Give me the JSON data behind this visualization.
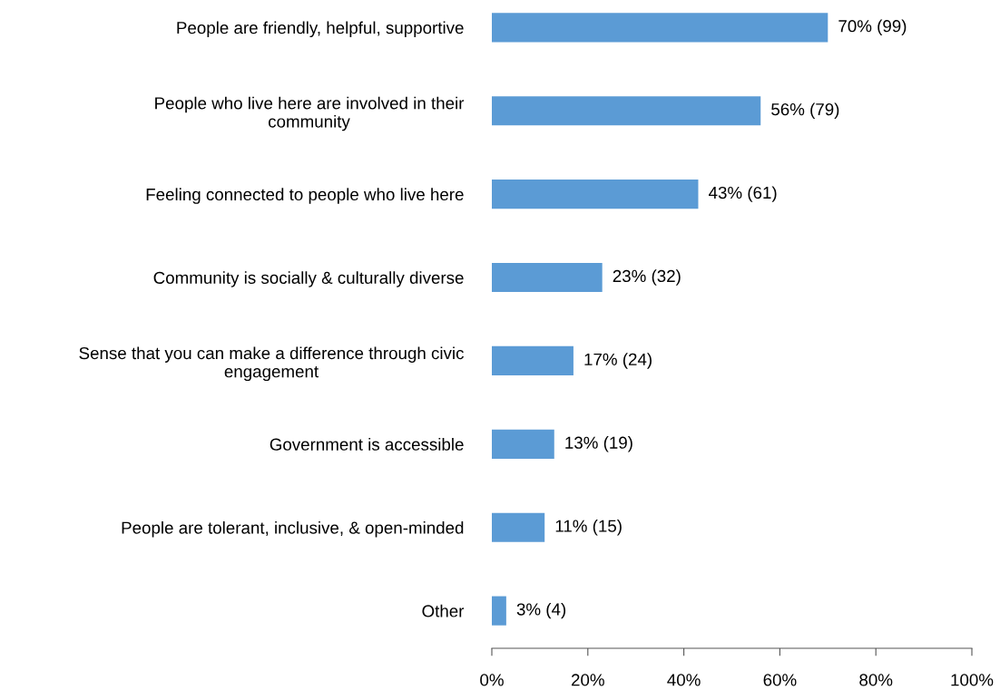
{
  "chart_data": {
    "type": "bar",
    "orientation": "horizontal",
    "categories": [
      "People are friendly, helpful, supportive",
      "People who live here are involved in their\ncommunity",
      "Feeling connected to people who live here",
      "Community is socially & culturally diverse",
      "Sense that you can make a difference through civic\nengagement",
      "Government is accessible",
      "People are tolerant, inclusive, & open-minded",
      "Other"
    ],
    "values": [
      70,
      56,
      43,
      23,
      17,
      13,
      11,
      3
    ],
    "value_labels": [
      "70% (99)",
      "56% (79)",
      "43% (61)",
      "23% (32)",
      "17% (24)",
      "13% (19)",
      "11% (15)",
      "3% (4)"
    ],
    "color": "#5b9bd5",
    "xlim": [
      0,
      100
    ],
    "xticks": [
      {
        "value": 0,
        "label": "0%"
      },
      {
        "value": 20,
        "label": "20%"
      },
      {
        "value": 40,
        "label": "40%"
      },
      {
        "value": 60,
        "label": "60%"
      },
      {
        "value": 80,
        "label": "80%"
      },
      {
        "value": 100,
        "label": "100%"
      }
    ],
    "grid": false,
    "legend": false
  }
}
